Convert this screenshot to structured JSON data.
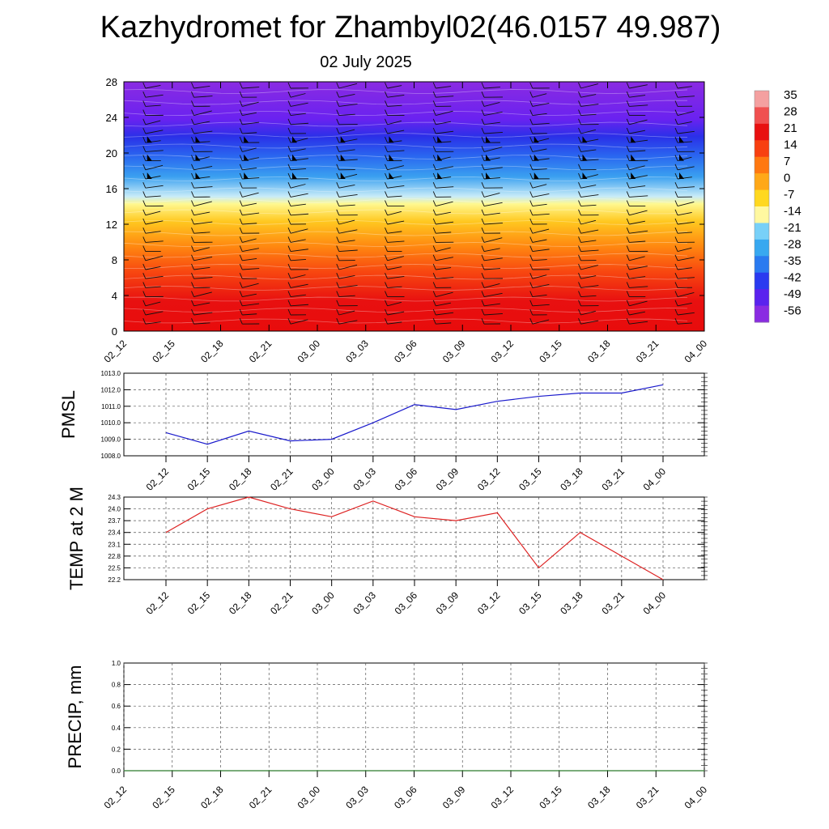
{
  "header": {
    "title": "Kazhydromet for Zhambyl02(46.0157 49.987)",
    "subtitle": "02 July 2025"
  },
  "colors": {
    "pmsl_line": "#1a1acc",
    "temp_line": "#dd2222",
    "precip_line": "#2a7a2a",
    "colorbar": [
      "#8a2be2",
      "#5a22ee",
      "#2a3af0",
      "#2a7af0",
      "#38a8f0",
      "#78d0f8",
      "#fff8a0",
      "#ffd820",
      "#ffa818",
      "#ff7810",
      "#f84010",
      "#e81010",
      "#f05050",
      "#f4a0a0"
    ]
  },
  "chart_data": [
    {
      "type": "heatmap",
      "name_hint": "cross-section",
      "categories": [
        "02_12",
        "02_15",
        "02_18",
        "02_21",
        "03_00",
        "03_03",
        "03_06",
        "03_09",
        "03_12",
        "03_15",
        "03_18",
        "03_21",
        "04_00"
      ],
      "ylim": [
        0,
        28
      ],
      "yticks": [
        0,
        4,
        8,
        12,
        16,
        20,
        24,
        28
      ],
      "colorbar_labels": [
        "35",
        "28",
        "21",
        "14",
        "7",
        "0",
        "-7",
        "-14",
        "-21",
        "-28",
        "-35",
        "-42",
        "-49",
        "-56"
      ]
    },
    {
      "type": "line",
      "ylabel": "PMSL",
      "categories": [
        "02_12",
        "02_15",
        "02_18",
        "02_21",
        "03_00",
        "03_03",
        "03_06",
        "03_09",
        "03_12",
        "03_15",
        "03_18",
        "03_21",
        "04_00"
      ],
      "values": [
        1009.4,
        1008.7,
        1009.5,
        1008.9,
        1009.0,
        1010.0,
        1011.1,
        1010.8,
        1011.3,
        1011.6,
        1011.8,
        1011.8,
        1012.3
      ],
      "ylim": [
        1008.0,
        1013.0
      ],
      "yticks": [
        "1008.0",
        "1009.0",
        "1010.0",
        "1011.0",
        "1012.0",
        "1013.0"
      ]
    },
    {
      "type": "line",
      "ylabel": "TEMP at 2 M",
      "categories": [
        "02_12",
        "02_15",
        "02_18",
        "02_21",
        "03_00",
        "03_03",
        "03_06",
        "03_09",
        "03_12",
        "03_15",
        "03_18",
        "03_21",
        "04_00"
      ],
      "values": [
        23.4,
        24.0,
        24.3,
        24.0,
        23.8,
        24.2,
        23.8,
        23.7,
        23.9,
        22.5,
        23.4,
        22.8,
        22.2
      ],
      "ylim": [
        22.2,
        24.3
      ],
      "yticks": [
        "22.2",
        "22.5",
        "22.8",
        "23.1",
        "23.4",
        "23.7",
        "24.0",
        "24.3"
      ]
    },
    {
      "type": "line",
      "ylabel": "PRECIP, mm",
      "categories": [
        "02_12",
        "02_15",
        "02_18",
        "02_21",
        "03_00",
        "03_03",
        "03_06",
        "03_09",
        "03_12",
        "03_15",
        "03_18",
        "03_21",
        "04_00"
      ],
      "values": [
        0,
        0,
        0,
        0,
        0,
        0,
        0,
        0,
        0,
        0,
        0,
        0,
        0
      ],
      "ylim": [
        0.0,
        1.0
      ],
      "yticks": [
        "0.0",
        "0.2",
        "0.4",
        "0.6",
        "0.8",
        "1.0"
      ]
    }
  ]
}
